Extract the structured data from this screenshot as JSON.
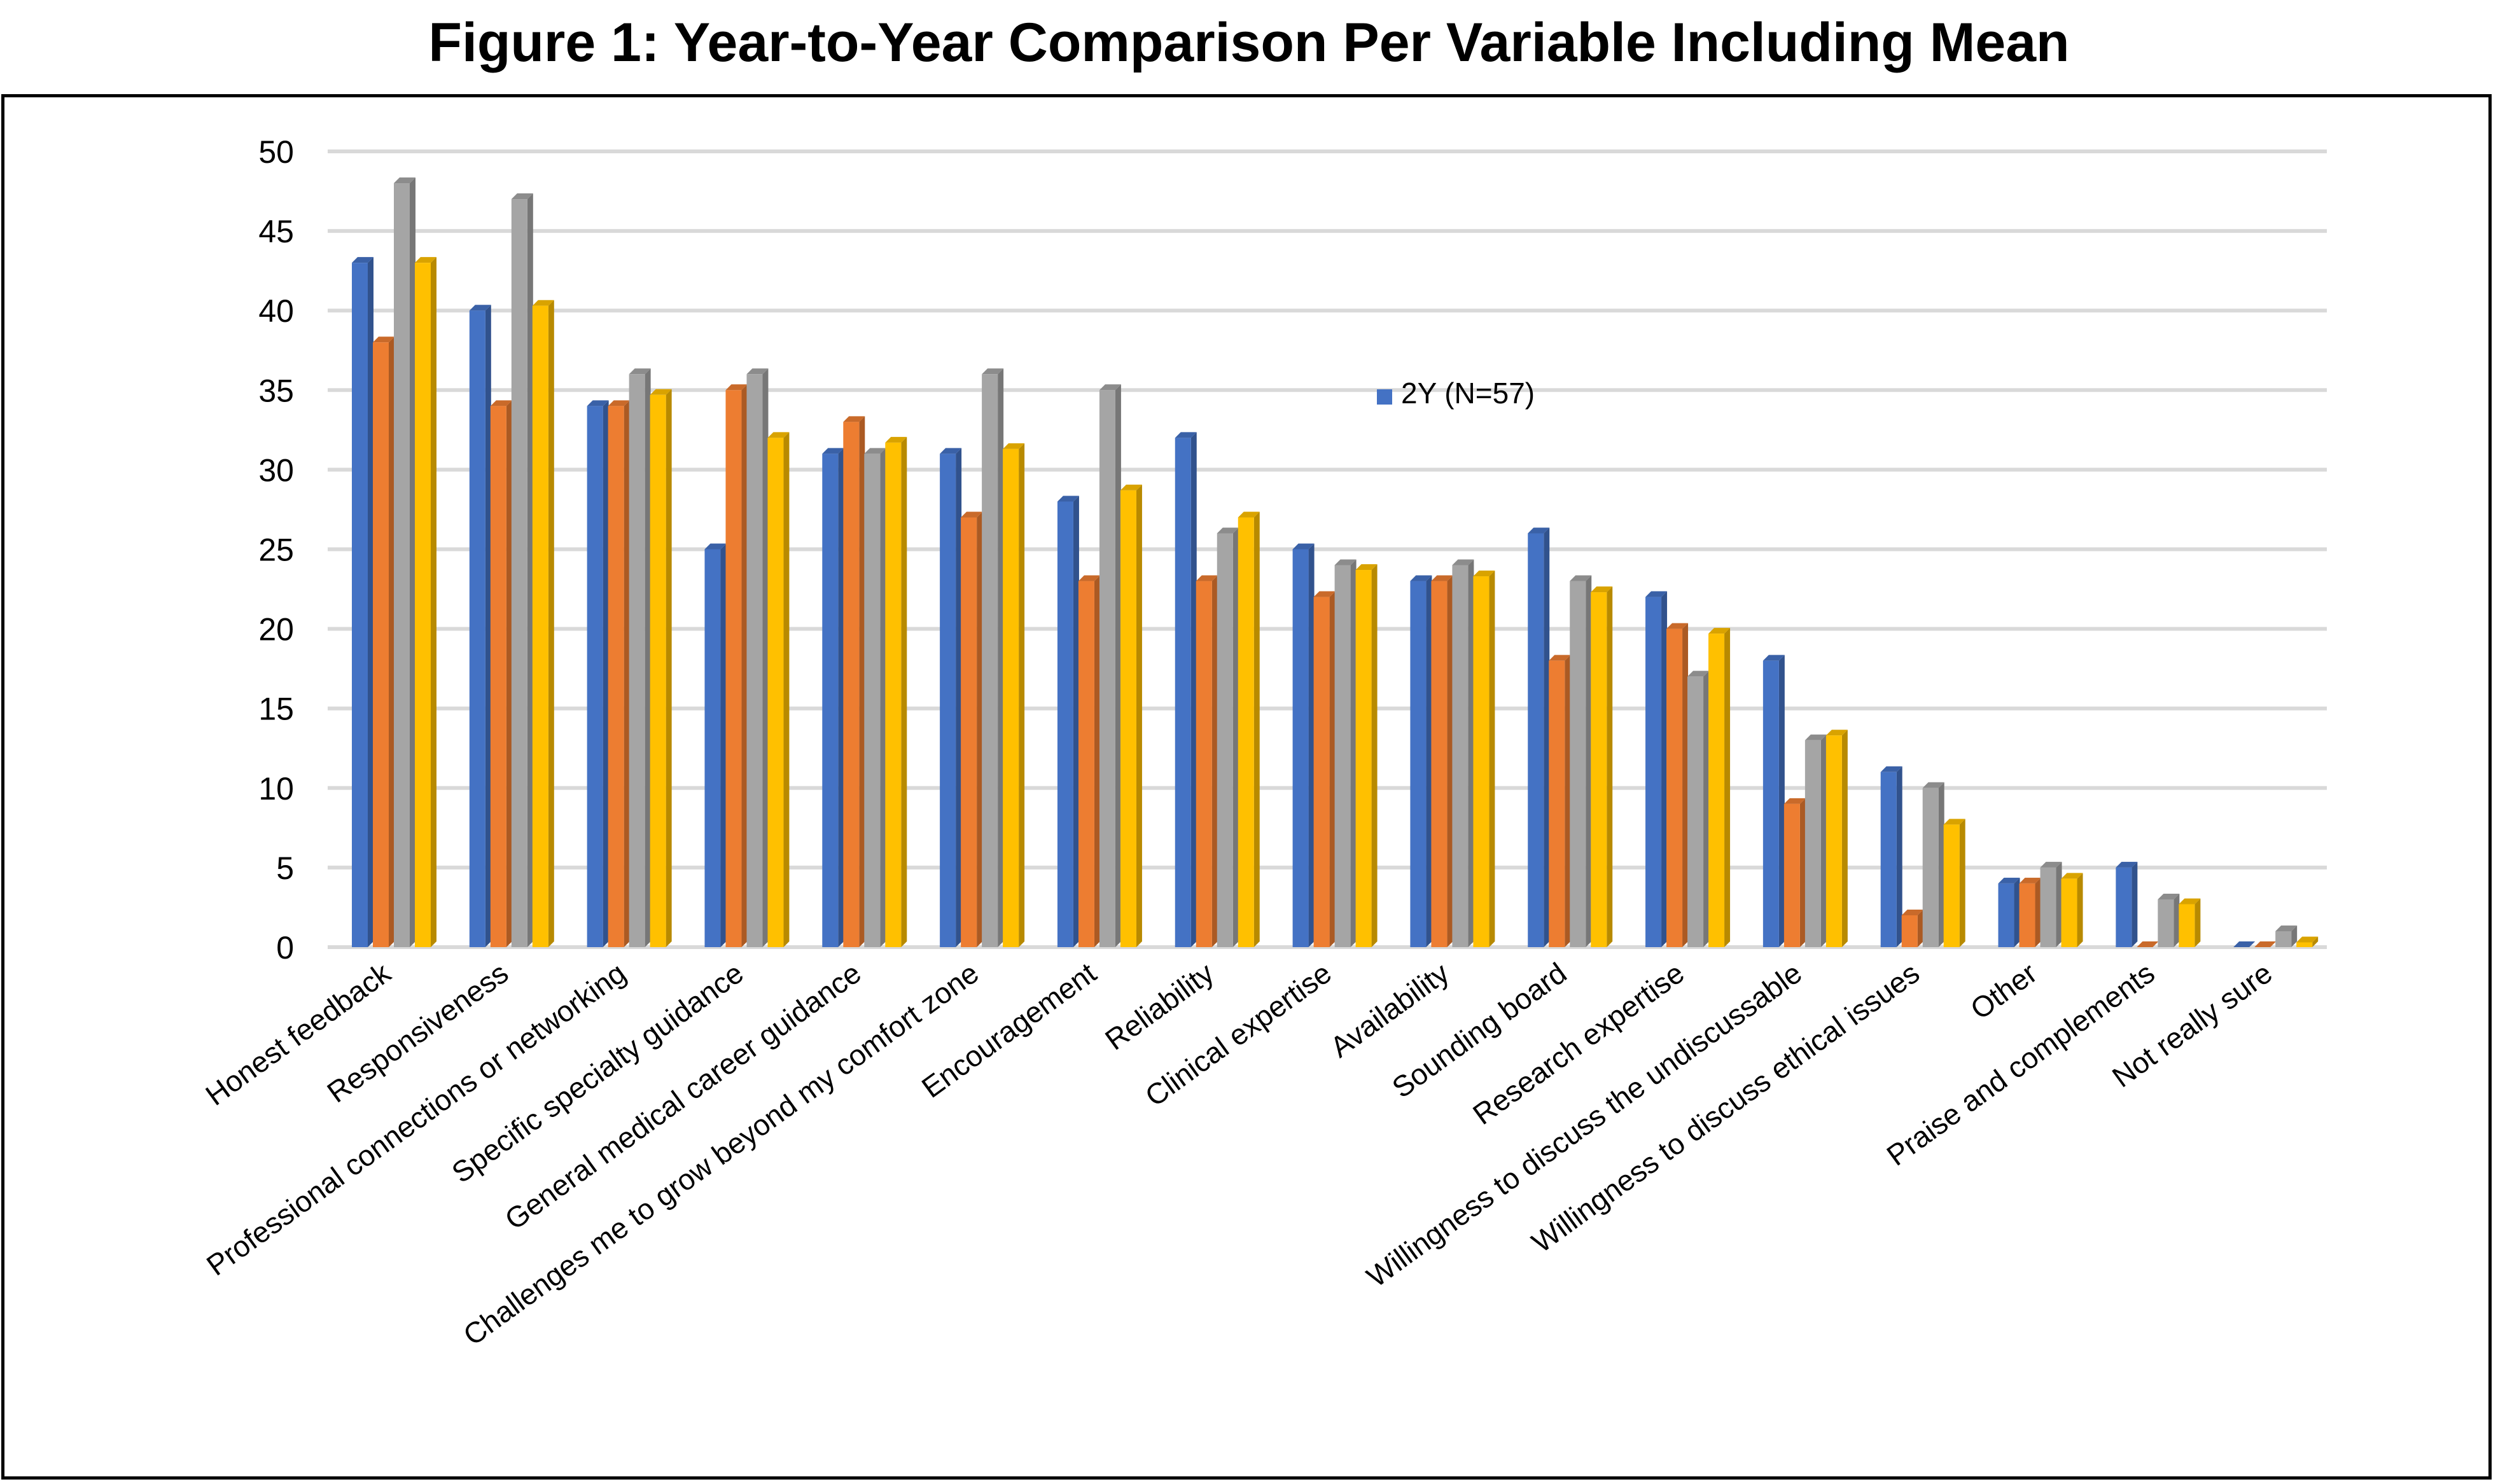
{
  "title": "Figure 1: Year-to-Year Comparison Per Variable Including Mean",
  "chart_data": {
    "type": "bar",
    "title": "Figure 1: Year-to-Year Comparison Per Variable Including Mean",
    "xlabel": "",
    "ylabel": "",
    "ylim": [
      0,
      50
    ],
    "yticks": [
      0,
      5,
      10,
      15,
      20,
      25,
      30,
      35,
      40,
      45,
      50
    ],
    "grid": true,
    "legend_placement": "center",
    "categories": [
      "Honest feedback",
      "Responsiveness",
      "Professional connections or networking",
      "Specific specialty guidance",
      "General medical career guidance",
      "Challenges me to grow beyond my comfort zone",
      "Encouragement",
      "Reliability",
      "Clinical expertise",
      "Availability",
      "Sounding board",
      "Research expertise",
      "Willingness to discuss the undiscussable",
      "Willingness to discuss ethical issues",
      "Other",
      "Praise and complements",
      "Not really sure"
    ],
    "series": [
      {
        "name": "2Y (N=57)",
        "color": "#4472C4",
        "values": [
          43,
          40,
          34,
          25,
          31,
          31,
          28,
          32,
          25,
          23,
          26,
          22,
          18,
          11,
          4,
          5,
          0
        ]
      },
      {
        "color": "#ED7D31",
        "values": [
          38,
          34,
          34,
          35,
          33,
          27,
          23,
          23,
          22,
          23,
          18,
          20,
          9,
          2,
          4,
          0,
          0
        ]
      },
      {
        "color": "#A5A5A5",
        "values": [
          48,
          47,
          36,
          36,
          31,
          36,
          35,
          26,
          24,
          24,
          23,
          17,
          13,
          10,
          5,
          3,
          1
        ]
      },
      {
        "color": "#FFC000",
        "values": [
          43,
          40.3,
          34.7,
          32,
          31.7,
          31.3,
          28.7,
          27,
          23.7,
          23.3,
          22.3,
          19.7,
          13.3,
          7.7,
          4.3,
          2.7,
          0.3
        ]
      }
    ]
  }
}
